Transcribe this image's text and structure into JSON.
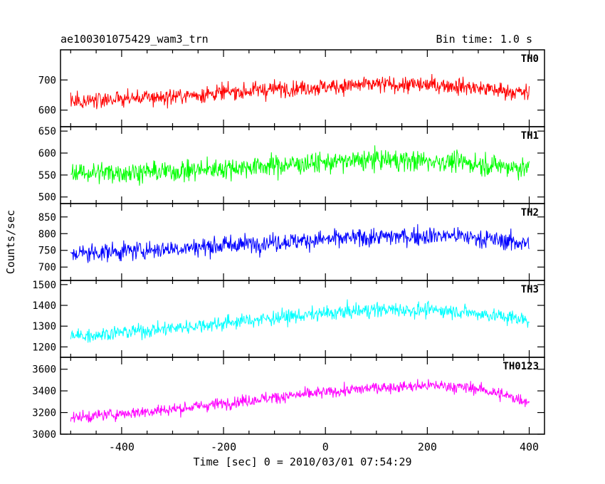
{
  "header": {
    "left_title": "ae100301075429_wam3_trn",
    "right_title": "Bin time: 1.0 s"
  },
  "axes": {
    "xlabel": "Time [sec] 0 = 2010/03/01 07:54:29",
    "ylabel": "Counts/sec"
  },
  "chart_data": [
    {
      "type": "line",
      "name": "TH0",
      "color": "#ff0000",
      "x_range": [
        -500,
        400
      ],
      "xlim": [
        -520,
        430
      ],
      "ylim": [
        545,
        800
      ],
      "yticks": [
        600,
        700
      ],
      "xticks": [
        -400,
        -200,
        0,
        200,
        400
      ],
      "trend": [
        [
          -500,
          630
        ],
        [
          -300,
          645
        ],
        [
          -100,
          670
        ],
        [
          100,
          685
        ],
        [
          250,
          682
        ],
        [
          400,
          655
        ]
      ],
      "noise": 35
    },
    {
      "type": "line",
      "name": "TH1",
      "color": "#00ff00",
      "x_range": [
        -500,
        400
      ],
      "xlim": [
        -520,
        430
      ],
      "ylim": [
        485,
        660
      ],
      "yticks": [
        500,
        550,
        600,
        650
      ],
      "xticks": [
        -400,
        -200,
        0,
        200,
        400
      ],
      "trend": [
        [
          -500,
          555
        ],
        [
          -300,
          558
        ],
        [
          -100,
          572
        ],
        [
          100,
          585
        ],
        [
          250,
          580
        ],
        [
          400,
          565
        ]
      ],
      "noise": 30
    },
    {
      "type": "line",
      "name": "TH2",
      "color": "#0000ff",
      "x_range": [
        -500,
        400
      ],
      "xlim": [
        -520,
        430
      ],
      "ylim": [
        660,
        890
      ],
      "yticks": [
        700,
        750,
        800,
        850
      ],
      "xticks": [
        -400,
        -200,
        0,
        200,
        400
      ],
      "trend": [
        [
          -500,
          740
        ],
        [
          -300,
          755
        ],
        [
          -100,
          775
        ],
        [
          100,
          790
        ],
        [
          250,
          795
        ],
        [
          400,
          770
        ]
      ],
      "noise": 35
    },
    {
      "type": "line",
      "name": "TH3",
      "color": "#00ffff",
      "x_range": [
        -500,
        400
      ],
      "xlim": [
        -520,
        430
      ],
      "ylim": [
        1150,
        1520
      ],
      "yticks": [
        1200,
        1300,
        1400,
        1500
      ],
      "xticks": [
        -400,
        -200,
        0,
        200,
        400
      ],
      "trend": [
        [
          -500,
          1250
        ],
        [
          -300,
          1290
        ],
        [
          -100,
          1340
        ],
        [
          100,
          1380
        ],
        [
          250,
          1375
        ],
        [
          400,
          1330
        ]
      ],
      "noise": 45
    },
    {
      "type": "line",
      "name": "TH0123",
      "color": "#ff00ff",
      "x_range": [
        -500,
        400
      ],
      "xlim": [
        -520,
        430
      ],
      "ylim": [
        3000,
        3710
      ],
      "yticks": [
        3000,
        3200,
        3400,
        3600
      ],
      "xticks": [
        -400,
        -200,
        0,
        200,
        400
      ],
      "trend": [
        [
          -500,
          3150
        ],
        [
          -300,
          3230
        ],
        [
          -100,
          3340
        ],
        [
          100,
          3430
        ],
        [
          220,
          3450
        ],
        [
          300,
          3420
        ],
        [
          400,
          3300
        ]
      ],
      "noise": 70
    }
  ]
}
